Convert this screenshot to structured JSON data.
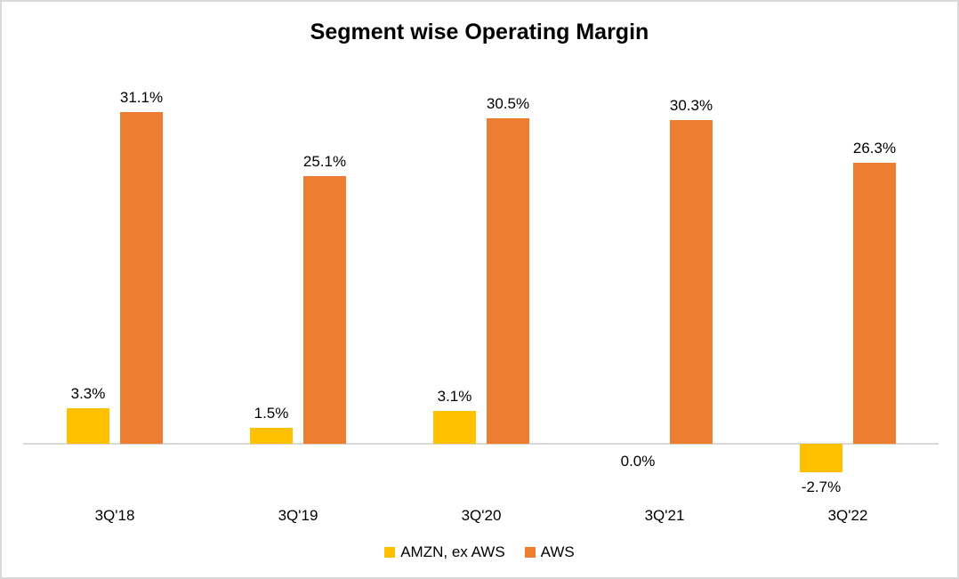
{
  "chart_data": {
    "type": "bar",
    "title": "Segment wise Operating Margin",
    "categories": [
      "3Q'18",
      "3Q'19",
      "3Q'20",
      "3Q'21",
      "3Q'22"
    ],
    "series": [
      {
        "name": "AMZN, ex AWS",
        "color": "#FFC000",
        "values": [
          3.3,
          1.5,
          3.1,
          0.0,
          -2.7
        ],
        "labels": [
          "3.3%",
          "1.5%",
          "3.1%",
          "0.0%",
          "-2.7%"
        ]
      },
      {
        "name": "AWS",
        "color": "#ED7D31",
        "values": [
          31.1,
          25.1,
          30.5,
          30.3,
          26.3
        ],
        "labels": [
          "31.1%",
          "25.1%",
          "30.5%",
          "30.3%",
          "26.3%"
        ]
      }
    ],
    "value_format": "percent",
    "data_labels": true,
    "gridlines": false,
    "y_axis_visible": false,
    "legend_position": "bottom",
    "axis_color": "#D9D9D9",
    "background_color": "#FFFFFF",
    "ylim": [
      -5,
      35
    ]
  }
}
